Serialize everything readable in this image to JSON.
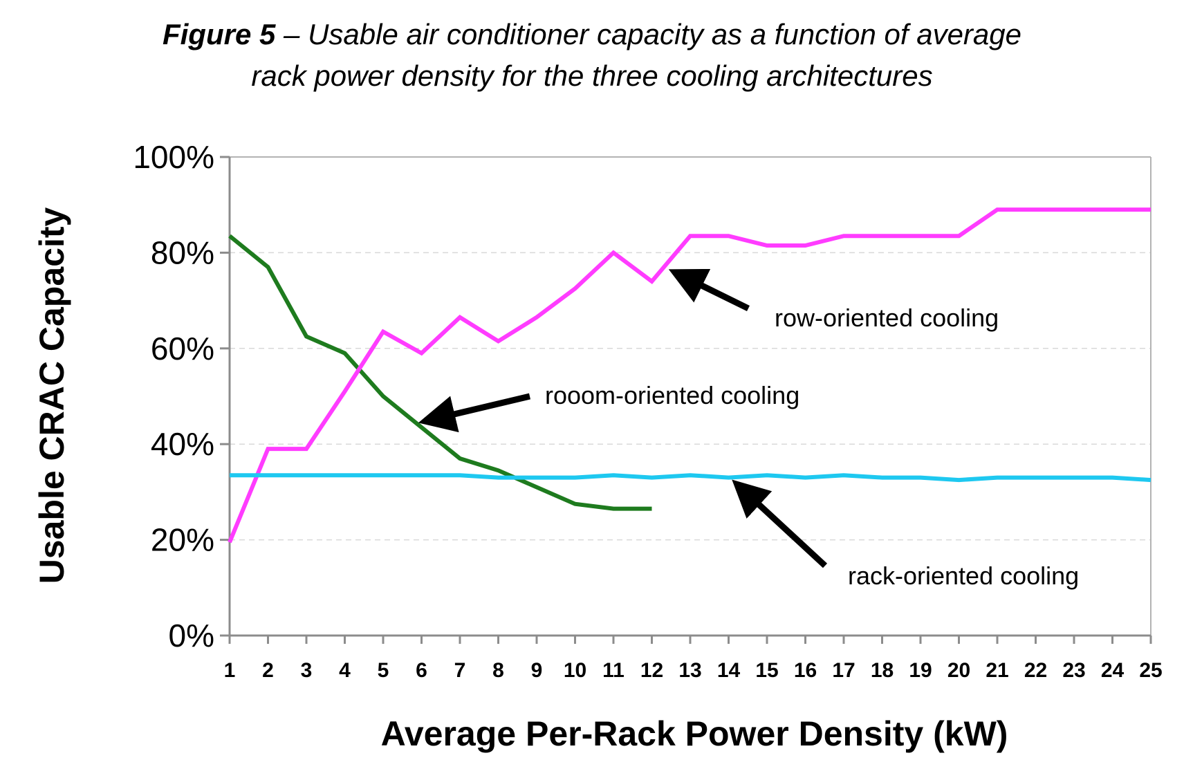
{
  "figure": {
    "label": "Figure 5",
    "separator": " – ",
    "caption_line1": "Usable air conditioner capacity as a function of average",
    "caption_line2": "rack power density for the three cooling architectures"
  },
  "chart_data": {
    "type": "line",
    "title": "",
    "xlabel": "Average Per-Rack Power Density (kW)",
    "ylabel": "Usable CRAC Capacity",
    "x": [
      1,
      2,
      3,
      4,
      5,
      6,
      7,
      8,
      9,
      10,
      11,
      12,
      13,
      14,
      15,
      16,
      17,
      18,
      19,
      20,
      21,
      22,
      23,
      24,
      25
    ],
    "xlim": [
      1,
      25
    ],
    "ylim": [
      0,
      100
    ],
    "y_ticks": [
      "0%",
      "20%",
      "40%",
      "60%",
      "80%",
      "100%"
    ],
    "y_tick_values": [
      0,
      20,
      40,
      60,
      80,
      100
    ],
    "x_tick_labels": [
      "1",
      "2",
      "3",
      "4",
      "5",
      "6",
      "7",
      "8",
      "9",
      "10",
      "11",
      "12",
      "13",
      "14",
      "15",
      "16",
      "17",
      "18",
      "19",
      "20",
      "21",
      "22",
      "23",
      "24",
      "25"
    ],
    "grid": "horizontal dashed",
    "legend": "none",
    "series": [
      {
        "name": "rooom-oriented cooling",
        "color": "#1e7b1e",
        "x": [
          1,
          2,
          3,
          4,
          5,
          6,
          7,
          8,
          9,
          10,
          11,
          12
        ],
        "values": [
          83.5,
          77,
          62.5,
          59,
          50,
          43.5,
          37,
          34.5,
          31,
          27.5,
          26.5,
          26.5
        ]
      },
      {
        "name": "row-oriented cooling",
        "color": "#ff3cff",
        "x": [
          1,
          2,
          3,
          4,
          5,
          6,
          7,
          8,
          9,
          10,
          11,
          12,
          13,
          14,
          15,
          16,
          17,
          18,
          19,
          20,
          21,
          22,
          23,
          24,
          25
        ],
        "values": [
          19.5,
          39,
          39,
          51,
          63.5,
          59,
          66.5,
          61.5,
          66.5,
          72.5,
          80,
          74,
          83.5,
          83.5,
          81.5,
          81.5,
          83.5,
          83.5,
          83.5,
          83.5,
          89,
          89,
          89,
          89,
          89
        ]
      },
      {
        "name": "rack-oriented cooling",
        "color": "#1ec8f0",
        "x": [
          1,
          2,
          3,
          4,
          5,
          6,
          7,
          8,
          9,
          10,
          11,
          12,
          13,
          14,
          15,
          16,
          17,
          18,
          19,
          20,
          21,
          22,
          23,
          24,
          25
        ],
        "values": [
          33.5,
          33.5,
          33.5,
          33.5,
          33.5,
          33.5,
          33.5,
          33,
          33,
          33,
          33.5,
          33,
          33.5,
          33,
          33.5,
          33,
          33.5,
          33,
          33,
          32.5,
          33,
          33,
          33,
          33,
          32.5
        ]
      }
    ],
    "annotations": [
      {
        "text": "row-oriented cooling",
        "points_to": {
          "x": 12.7,
          "y": 75.5
        }
      },
      {
        "text": "rooom-oriented cooling",
        "points_to": {
          "x": 6.2,
          "y": 45
        }
      },
      {
        "text": "rack-oriented cooling",
        "points_to": {
          "x": 14.3,
          "y": 31
        }
      }
    ]
  }
}
